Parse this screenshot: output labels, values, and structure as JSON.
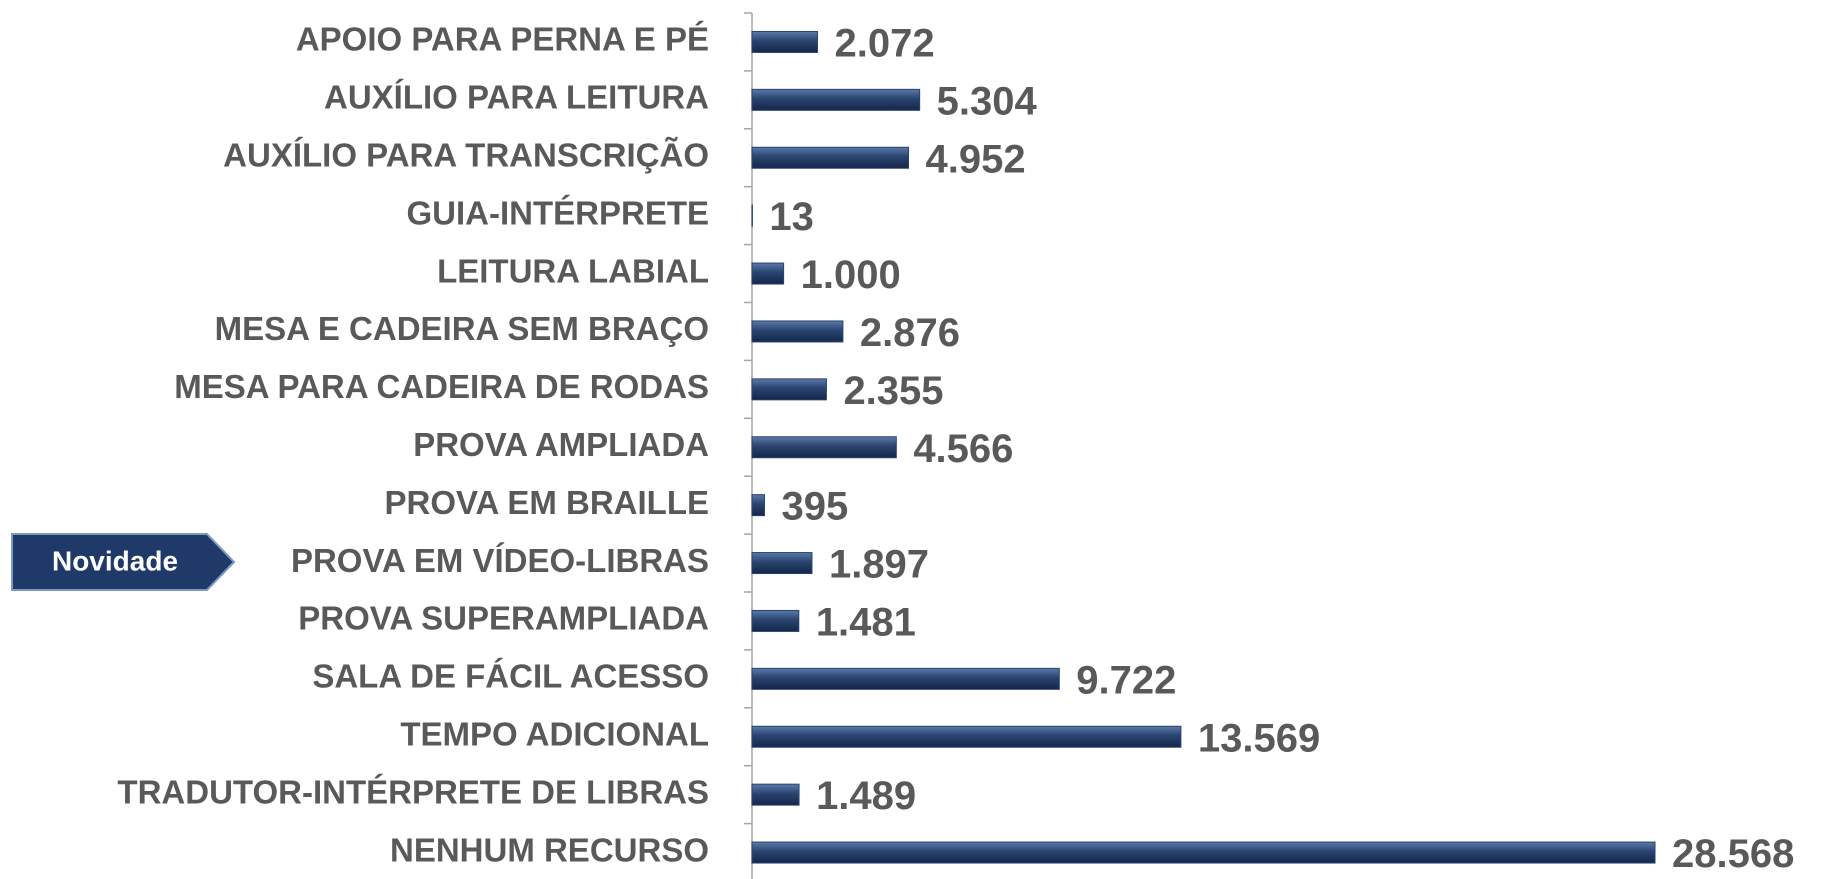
{
  "chart_data": {
    "type": "bar",
    "orientation": "horizontal",
    "categories": [
      "APOIO PARA PERNA E PÉ",
      "AUXÍLIO PARA LEITURA",
      "AUXÍLIO PARA TRANSCRIÇÃO",
      "GUIA-INTÉRPRETE",
      "LEITURA LABIAL",
      "MESA E CADEIRA SEM BRAÇO",
      "MESA PARA CADEIRA DE RODAS",
      "PROVA AMPLIADA",
      "PROVA EM BRAILLE",
      "PROVA EM VÍDEO-LIBRAS",
      "PROVA SUPERAMPLIADA",
      "SALA DE FÁCIL ACESSO",
      "TEMPO ADICIONAL",
      "TRADUTOR-INTÉRPRETE DE LIBRAS",
      "NENHUM RECURSO"
    ],
    "values": [
      2072,
      5304,
      4952,
      13,
      1000,
      2876,
      2355,
      4566,
      395,
      1897,
      1481,
      9722,
      13569,
      1489,
      28568
    ],
    "value_labels": [
      "2.072",
      "5.304",
      "4.952",
      "13",
      "1.000",
      "2.876",
      "2.355",
      "4.566",
      "395",
      "1.897",
      "1.481",
      "9.722",
      "13.569",
      "1.489",
      "28.568"
    ],
    "color": "#2a4470",
    "annotation": "Novidade"
  }
}
